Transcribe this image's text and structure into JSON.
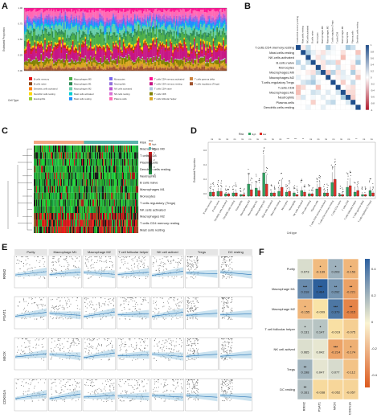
{
  "panels": {
    "A": {
      "label": "A",
      "ylabel": "Estimated Proportion",
      "yticks": [
        "0.00",
        "0.25",
        "0.50",
        "0.75",
        "1.00"
      ],
      "legend_title": "Cell Type",
      "legend": [
        {
          "name": "B cells memory",
          "color": "#e41a1c"
        },
        {
          "name": "B cells naive",
          "color": "#8b4513"
        },
        {
          "name": "Dendritic cells activated",
          "color": "#ff7f00"
        },
        {
          "name": "Dendritic cells resting",
          "color": "#ffd700"
        },
        {
          "name": "Eosinophils",
          "color": "#9acd32"
        },
        {
          "name": "Macrophages M0",
          "color": "#4daf4a"
        },
        {
          "name": "Macrophages M1",
          "color": "#2e8b57"
        },
        {
          "name": "Macrophages M2",
          "color": "#66cdaa"
        },
        {
          "name": "Mast cells activated",
          "color": "#00ced1"
        },
        {
          "name": "Mast cells resting",
          "color": "#1e90ff"
        },
        {
          "name": "Monocytes",
          "color": "#7b68ee"
        },
        {
          "name": "Neutrophils",
          "color": "#9370db"
        },
        {
          "name": "NK cells activated",
          "color": "#ba55d3"
        },
        {
          "name": "NK cells resting",
          "color": "#da70d6"
        },
        {
          "name": "Plasma cells",
          "color": "#ff69b4"
        },
        {
          "name": "T cells CD4 memory activated",
          "color": "#ff1493"
        },
        {
          "name": "T cells CD4 memory resting",
          "color": "#c71585"
        },
        {
          "name": "T cells CD4 naive",
          "color": "#b0c4de"
        },
        {
          "name": "T cells CD8",
          "color": "#808000"
        },
        {
          "name": "T cells follicular helper",
          "color": "#daa520"
        },
        {
          "name": "T cells gamma delta",
          "color": "#cd853f"
        },
        {
          "name": "T cells regulatory (Tregs)",
          "color": "#a0522d"
        }
      ]
    },
    "B": {
      "label": "B",
      "rows": [
        "T.cells.CD4.memory.resting",
        "Mast.cells.resting",
        "NK.cells.activated",
        "B.cells.naive",
        "Monocytes",
        "Macrophages.M0",
        "Macrophages.M2",
        "T.cells.regulatory.Tregs",
        "T.cells.CD8",
        "Macrophages.M1",
        "Neutrophils",
        "Plasma.cells",
        "Dendritic.cells.resting"
      ],
      "scale": [
        "1",
        "0.8",
        "0.6",
        "0.4",
        "0.2",
        "0",
        "-0.2",
        "-0.4",
        "-0.6",
        "-0.8",
        "-1"
      ]
    },
    "C": {
      "label": "C",
      "rows": [
        "Macrophages M0",
        "T cells CD8",
        "Plasma cells",
        "Dendritic cells resting",
        "Neutrophils",
        "B cells naive",
        "Macrophages M1",
        "Monocytes",
        "T cells regulatory (Tregs)",
        "NK cells activated",
        "Macrophages M2",
        "T cells CD4 memory resting",
        "Mast cells resting"
      ],
      "top_label": "Risk",
      "legend_risk": [
        "Risk",
        "high",
        "low"
      ],
      "scale": [
        "4",
        "2",
        "0",
        "-2"
      ]
    },
    "D": {
      "label": "D",
      "legend_title": "Risk",
      "legend": [
        {
          "name": "high",
          "color": "#2ca25f"
        },
        {
          "name": "low",
          "color": "#de2d26"
        }
      ],
      "ylabel": "Estimated Proportion",
      "xlabel": "Cell type",
      "yticks": [
        "0.6",
        "0.4",
        "0.2",
        "0.0"
      ],
      "signif": [
        "ns",
        "ns",
        "ns",
        "ns",
        "ns",
        "ns",
        "ns",
        "ns",
        "ns",
        "ns",
        "***",
        "***",
        "**",
        "ns",
        "ns",
        "ns",
        "ns",
        "ns",
        "ns",
        "**",
        "ns",
        "ns"
      ],
      "categories": [
        "B cells memory",
        "B cells naive",
        "Dendritic cells activated",
        "Dendritic cells resting",
        "Eosinophils",
        "Macrophages M0",
        "Macrophages M1",
        "Macrophages M2",
        "Mast cells activated",
        "Mast cells resting",
        "Monocytes",
        "Neutrophils",
        "NK cells activated",
        "NK cells resting",
        "Plasma cells",
        "T cells CD4 memory activated",
        "T cells CD4 memory resting",
        "T cells CD4 naive",
        "T cells CD8",
        "T cells follicular helper",
        "T cells gamma delta",
        "T cells regulatory (Tregs)"
      ]
    },
    "E": {
      "label": "E",
      "columns": [
        "Purity",
        "Macrophage M1",
        "Macrophage M2",
        "T cell follicular helper",
        "NK cell actived",
        "Tregs",
        "DC resting"
      ],
      "rows": [
        "RRM2",
        "PSAT1",
        "MIOX",
        "CDKN1A"
      ]
    },
    "F": {
      "label": "F",
      "rows": [
        "Purity",
        "Macrophage M1",
        "Macrophage M2",
        "T cell follicular helper",
        "NK cell actived",
        "Tregs",
        "DC resting"
      ],
      "cols": [
        "RRM2",
        "PSAT1",
        "MIOX",
        "CDKN1A"
      ],
      "values": [
        [
          "0.073",
          "-0.139",
          "0.203",
          "-0.153"
        ],
        [
          "0.318",
          "0.484",
          "0.292",
          "-0.221"
        ],
        [
          "-0.155",
          "-0.009",
          "0.379",
          "-0.315"
        ],
        [
          "0.131",
          "0.147",
          "-0.019",
          "-0.075"
        ],
        [
          "0.065",
          "0.042",
          "-0.214",
          "-0.174"
        ],
        [
          "0.198",
          "0.047",
          "0.077",
          "-0.112"
        ],
        [
          "0.161",
          "-0.038",
          "-0.052",
          "-0.057"
        ]
      ],
      "stars": [
        [
          "",
          "*",
          "*",
          "*"
        ],
        [
          "***",
          "***",
          "**",
          "**"
        ],
        [
          "*",
          "",
          "***",
          "**"
        ],
        [
          "*",
          "*",
          "",
          ""
        ],
        [
          "",
          "",
          "***",
          "*"
        ],
        [
          "**",
          "",
          "",
          ""
        ],
        [
          "**",
          "",
          "",
          ""
        ]
      ],
      "scale": [
        "0.4",
        "0.2",
        "0",
        "-0.2",
        "-0.4"
      ]
    }
  }
}
